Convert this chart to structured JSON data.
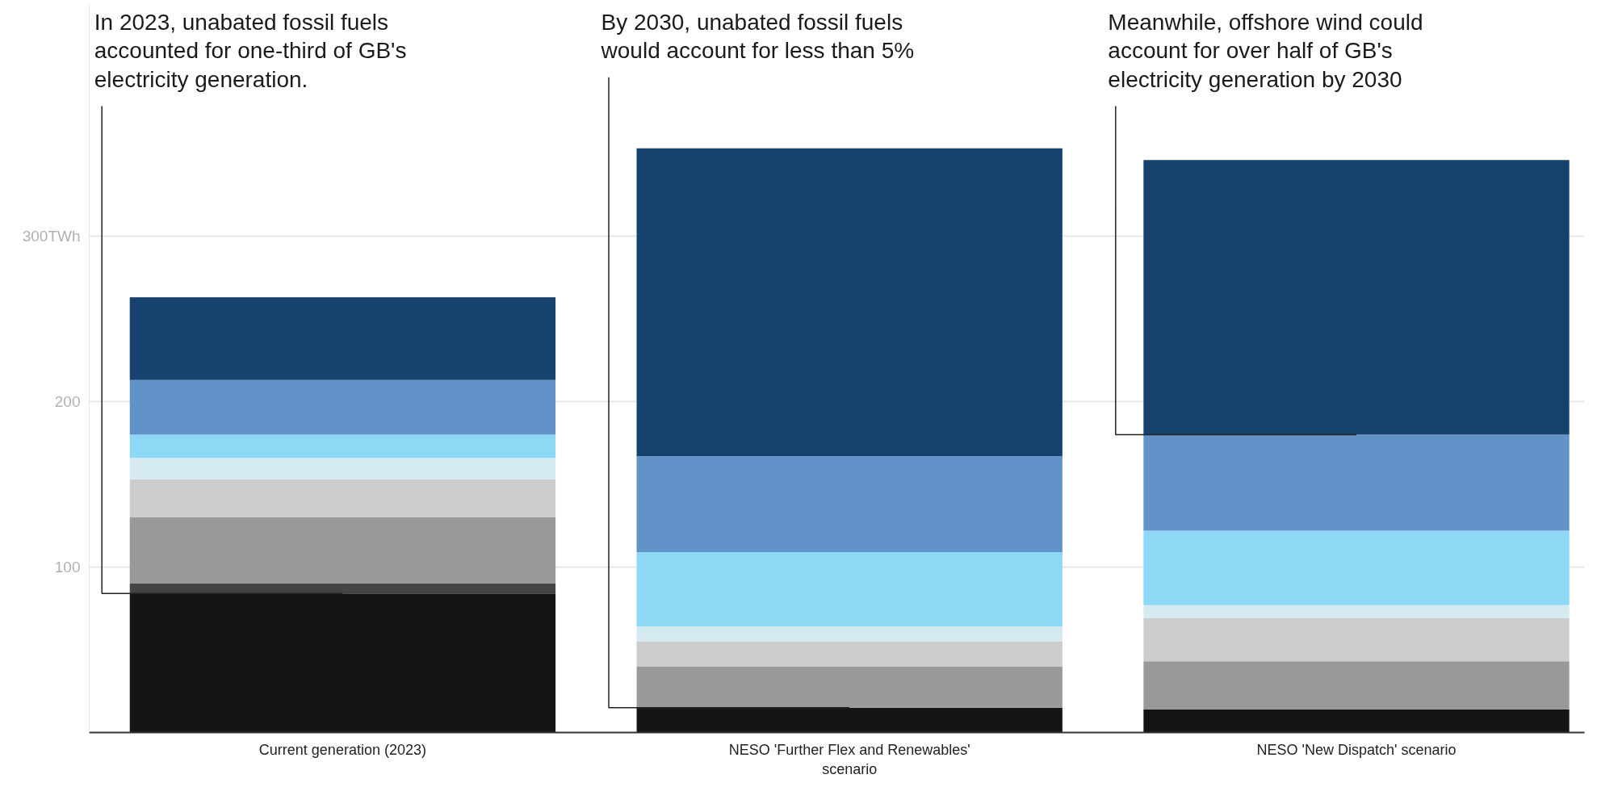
{
  "chart_data": {
    "type": "bar",
    "stacked": true,
    "categories": [
      "Current generation (2023)",
      "NESO 'Further Flex and Renewables' scenario",
      "NESO 'New Dispatch' scenario"
    ],
    "series": [
      {
        "color": "#151515",
        "values": [
          84,
          15,
          14
        ]
      },
      {
        "color": "#444444",
        "values": [
          6,
          0,
          0
        ]
      },
      {
        "color": "#999999",
        "values": [
          40,
          25,
          29
        ]
      },
      {
        "color": "#cccccc",
        "values": [
          23,
          15,
          26
        ]
      },
      {
        "color": "#d4e9f0",
        "values": [
          13,
          9,
          8
        ]
      },
      {
        "color": "#8dd8f5",
        "values": [
          14,
          45,
          45
        ]
      },
      {
        "color": "#6193c8",
        "values": [
          33,
          58,
          58
        ]
      },
      {
        "color": "#17426e",
        "values": [
          50,
          186,
          166
        ]
      }
    ],
    "ylim": [
      0,
      440
    ],
    "yticks": [
      100,
      200,
      {
        "value": 300,
        "label": "300TWh"
      }
    ],
    "grid": "y",
    "annotations": [
      {
        "text": "In 2023, unabated fossil fuels accounted for one-third of GB's electricity generation.",
        "x": "Current generation (2023)",
        "y": 84
      },
      {
        "text": "By 2030, unabated fossil fuels would account for less than 5%",
        "x": "NESO 'Further Flex and Renewables' scenario",
        "y": 15
      },
      {
        "text": "Meanwhile, offshore wind could account for over half of GB's electricity generation by 2030",
        "x": "NESO 'New Dispatch' scenario",
        "y": 180
      }
    ]
  }
}
